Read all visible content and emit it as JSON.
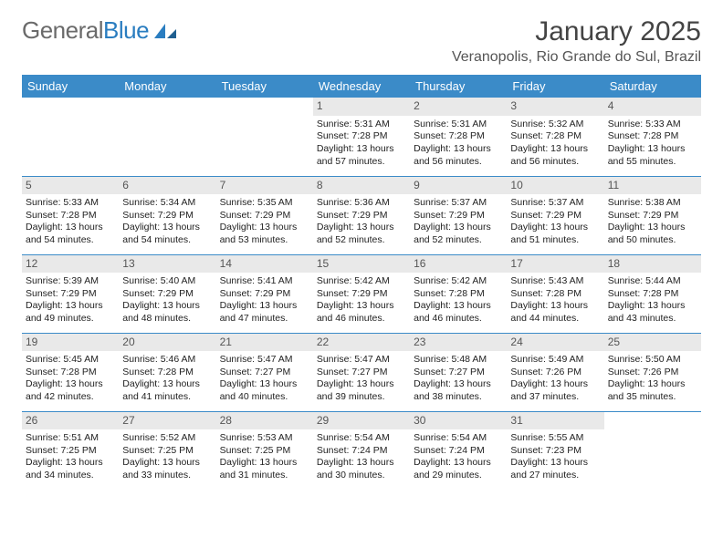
{
  "brand": {
    "part1": "General",
    "part2": "Blue"
  },
  "title": "January 2025",
  "location": "Veranopolis, Rio Grande do Sul, Brazil",
  "colors": {
    "header_bg": "#3b8bc8",
    "header_text": "#ffffff",
    "daynum_bg": "#e9e9e9",
    "rule": "#3b8bc8",
    "logo_gray": "#6a6a6a",
    "logo_blue": "#2a7dc0"
  },
  "day_headers": [
    "Sunday",
    "Monday",
    "Tuesday",
    "Wednesday",
    "Thursday",
    "Friday",
    "Saturday"
  ],
  "weeks": [
    [
      null,
      null,
      null,
      {
        "n": "1",
        "sr": "5:31 AM",
        "ss": "7:28 PM",
        "dl": "13 hours and 57 minutes."
      },
      {
        "n": "2",
        "sr": "5:31 AM",
        "ss": "7:28 PM",
        "dl": "13 hours and 56 minutes."
      },
      {
        "n": "3",
        "sr": "5:32 AM",
        "ss": "7:28 PM",
        "dl": "13 hours and 56 minutes."
      },
      {
        "n": "4",
        "sr": "5:33 AM",
        "ss": "7:28 PM",
        "dl": "13 hours and 55 minutes."
      }
    ],
    [
      {
        "n": "5",
        "sr": "5:33 AM",
        "ss": "7:28 PM",
        "dl": "13 hours and 54 minutes."
      },
      {
        "n": "6",
        "sr": "5:34 AM",
        "ss": "7:29 PM",
        "dl": "13 hours and 54 minutes."
      },
      {
        "n": "7",
        "sr": "5:35 AM",
        "ss": "7:29 PM",
        "dl": "13 hours and 53 minutes."
      },
      {
        "n": "8",
        "sr": "5:36 AM",
        "ss": "7:29 PM",
        "dl": "13 hours and 52 minutes."
      },
      {
        "n": "9",
        "sr": "5:37 AM",
        "ss": "7:29 PM",
        "dl": "13 hours and 52 minutes."
      },
      {
        "n": "10",
        "sr": "5:37 AM",
        "ss": "7:29 PM",
        "dl": "13 hours and 51 minutes."
      },
      {
        "n": "11",
        "sr": "5:38 AM",
        "ss": "7:29 PM",
        "dl": "13 hours and 50 minutes."
      }
    ],
    [
      {
        "n": "12",
        "sr": "5:39 AM",
        "ss": "7:29 PM",
        "dl": "13 hours and 49 minutes."
      },
      {
        "n": "13",
        "sr": "5:40 AM",
        "ss": "7:29 PM",
        "dl": "13 hours and 48 minutes."
      },
      {
        "n": "14",
        "sr": "5:41 AM",
        "ss": "7:29 PM",
        "dl": "13 hours and 47 minutes."
      },
      {
        "n": "15",
        "sr": "5:42 AM",
        "ss": "7:29 PM",
        "dl": "13 hours and 46 minutes."
      },
      {
        "n": "16",
        "sr": "5:42 AM",
        "ss": "7:28 PM",
        "dl": "13 hours and 46 minutes."
      },
      {
        "n": "17",
        "sr": "5:43 AM",
        "ss": "7:28 PM",
        "dl": "13 hours and 44 minutes."
      },
      {
        "n": "18",
        "sr": "5:44 AM",
        "ss": "7:28 PM",
        "dl": "13 hours and 43 minutes."
      }
    ],
    [
      {
        "n": "19",
        "sr": "5:45 AM",
        "ss": "7:28 PM",
        "dl": "13 hours and 42 minutes."
      },
      {
        "n": "20",
        "sr": "5:46 AM",
        "ss": "7:28 PM",
        "dl": "13 hours and 41 minutes."
      },
      {
        "n": "21",
        "sr": "5:47 AM",
        "ss": "7:27 PM",
        "dl": "13 hours and 40 minutes."
      },
      {
        "n": "22",
        "sr": "5:47 AM",
        "ss": "7:27 PM",
        "dl": "13 hours and 39 minutes."
      },
      {
        "n": "23",
        "sr": "5:48 AM",
        "ss": "7:27 PM",
        "dl": "13 hours and 38 minutes."
      },
      {
        "n": "24",
        "sr": "5:49 AM",
        "ss": "7:26 PM",
        "dl": "13 hours and 37 minutes."
      },
      {
        "n": "25",
        "sr": "5:50 AM",
        "ss": "7:26 PM",
        "dl": "13 hours and 35 minutes."
      }
    ],
    [
      {
        "n": "26",
        "sr": "5:51 AM",
        "ss": "7:25 PM",
        "dl": "13 hours and 34 minutes."
      },
      {
        "n": "27",
        "sr": "5:52 AM",
        "ss": "7:25 PM",
        "dl": "13 hours and 33 minutes."
      },
      {
        "n": "28",
        "sr": "5:53 AM",
        "ss": "7:25 PM",
        "dl": "13 hours and 31 minutes."
      },
      {
        "n": "29",
        "sr": "5:54 AM",
        "ss": "7:24 PM",
        "dl": "13 hours and 30 minutes."
      },
      {
        "n": "30",
        "sr": "5:54 AM",
        "ss": "7:24 PM",
        "dl": "13 hours and 29 minutes."
      },
      {
        "n": "31",
        "sr": "5:55 AM",
        "ss": "7:23 PM",
        "dl": "13 hours and 27 minutes."
      },
      null
    ]
  ],
  "labels": {
    "sunrise": "Sunrise:",
    "sunset": "Sunset:",
    "daylight": "Daylight:"
  }
}
